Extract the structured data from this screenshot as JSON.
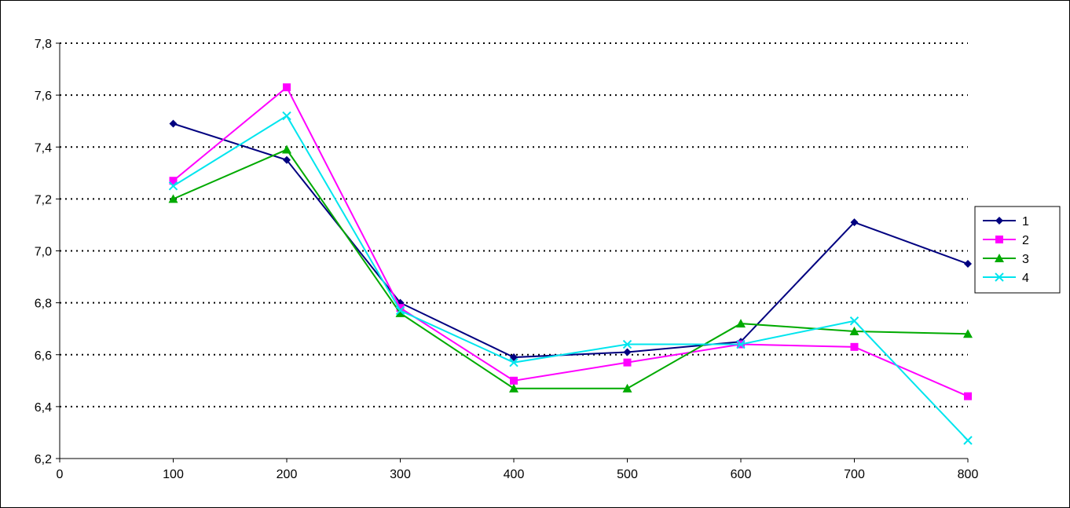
{
  "chart_data": {
    "type": "line",
    "title": "",
    "xlabel": "",
    "ylabel": "",
    "xlim": [
      0,
      800
    ],
    "ylim": [
      6.2,
      7.8
    ],
    "x_ticks": [
      0,
      100,
      200,
      300,
      400,
      500,
      600,
      700,
      800
    ],
    "x_tick_labels": [
      "0",
      "100",
      "200",
      "300",
      "400",
      "500",
      "600",
      "700",
      "800"
    ],
    "y_ticks": [
      6.2,
      6.4,
      6.6,
      6.8,
      7.0,
      7.2,
      7.4,
      7.6,
      7.8
    ],
    "y_tick_labels": [
      "6,2",
      "6,4",
      "6,6",
      "6,8",
      "7,0",
      "7,2",
      "7,4",
      "7,6",
      "7,8"
    ],
    "grid": "horizontal dotted",
    "legend_position": "right",
    "x": [
      100,
      200,
      300,
      400,
      500,
      600,
      700,
      800
    ],
    "series": [
      {
        "name": "1",
        "color": "#000080",
        "marker": "diamond",
        "values": [
          7.49,
          7.35,
          6.8,
          6.59,
          6.61,
          6.65,
          7.11,
          6.95
        ]
      },
      {
        "name": "2",
        "color": "#ff00ff",
        "marker": "square",
        "values": [
          7.27,
          7.63,
          6.78,
          6.5,
          6.57,
          6.64,
          6.63,
          6.44
        ]
      },
      {
        "name": "3",
        "color": "#00aa00",
        "marker": "triangle",
        "values": [
          7.2,
          7.39,
          6.76,
          6.47,
          6.47,
          6.72,
          6.69,
          6.68
        ]
      },
      {
        "name": "4",
        "color": "#00e5ee",
        "marker": "cross",
        "values": [
          7.25,
          7.52,
          6.77,
          6.57,
          6.64,
          6.64,
          6.73,
          6.27
        ]
      }
    ]
  }
}
